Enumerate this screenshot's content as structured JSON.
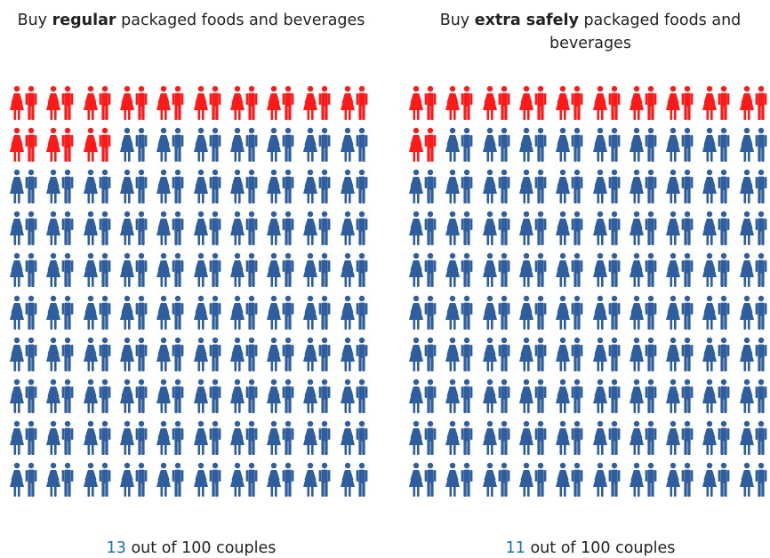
{
  "colors": {
    "highlight": "#ff1a1a",
    "base": "#2f5e9e",
    "count_text": "#1f6fa8",
    "text": "#222222"
  },
  "icon": "couple-icon",
  "panels": [
    {
      "title_prefix": "Buy ",
      "title_bold": "regular",
      "title_suffix": " packaged foods and beverages",
      "count": "13",
      "caption_rest": " out of 100 couples",
      "highlighted": 13,
      "total": 100
    },
    {
      "title_prefix": "Buy ",
      "title_bold": "extra safely",
      "title_suffix": " packaged foods and beverages",
      "count": "11",
      "caption_rest": " out of 100 couples",
      "highlighted": 11,
      "total": 100
    }
  ],
  "chart_data": [
    {
      "type": "pictograph",
      "title": "Buy regular packaged foods and beverages",
      "categories": [
        "highlighted couples",
        "other couples"
      ],
      "values": [
        13,
        87
      ],
      "total": 100,
      "caption": "13 out of 100 couples"
    },
    {
      "type": "pictograph",
      "title": "Buy extra safely packaged foods and beverages",
      "categories": [
        "highlighted couples",
        "other couples"
      ],
      "values": [
        11,
        89
      ],
      "total": 100,
      "caption": "11 out of 100 couples"
    }
  ]
}
